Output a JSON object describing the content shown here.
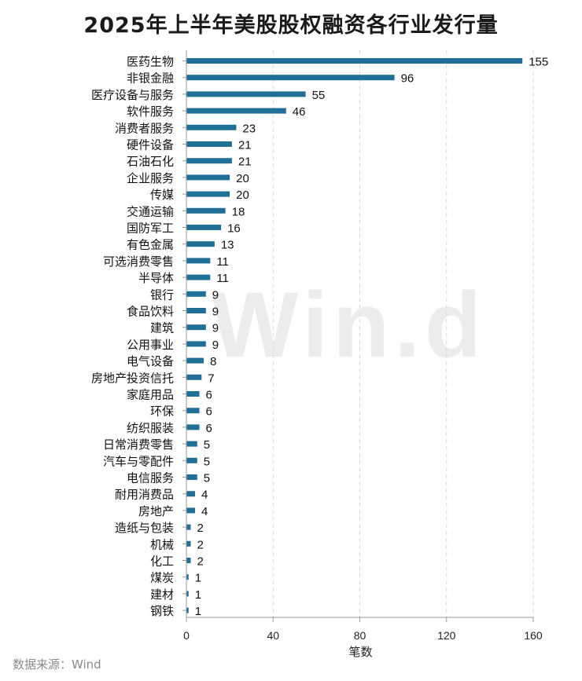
{
  "source_note": "数据来源：Wind",
  "watermark": "Win.d",
  "chart_data": {
    "type": "bar",
    "orientation": "horizontal",
    "title": "2025年上半年美股股权融资各行业发行量",
    "xlabel": "笔数",
    "ylabel": "",
    "xlim": [
      0,
      160
    ],
    "xticks": [
      0,
      40,
      80,
      120,
      160
    ],
    "grid": "vertical dashed",
    "bar_color": "#1f6f97",
    "categories": [
      "医药生物",
      "非银金融",
      "医疗设备与服务",
      "软件服务",
      "消费者服务",
      "硬件设备",
      "石油石化",
      "企业服务",
      "传媒",
      "交通运输",
      "国防军工",
      "有色金属",
      "可选消费零售",
      "半导体",
      "银行",
      "食品饮料",
      "建筑",
      "公用事业",
      "电气设备",
      "房地产投资信托",
      "家庭用品",
      "环保",
      "纺织服装",
      "日常消费零售",
      "汽车与零配件",
      "电信服务",
      "耐用消费品",
      "房地产",
      "造纸与包装",
      "机械",
      "化工",
      "煤炭",
      "建材",
      "钢铁"
    ],
    "values": [
      155,
      96,
      55,
      46,
      23,
      21,
      21,
      20,
      20,
      18,
      16,
      13,
      11,
      11,
      9,
      9,
      9,
      9,
      8,
      7,
      6,
      6,
      6,
      5,
      5,
      5,
      4,
      4,
      2,
      2,
      2,
      1,
      1,
      1
    ]
  }
}
